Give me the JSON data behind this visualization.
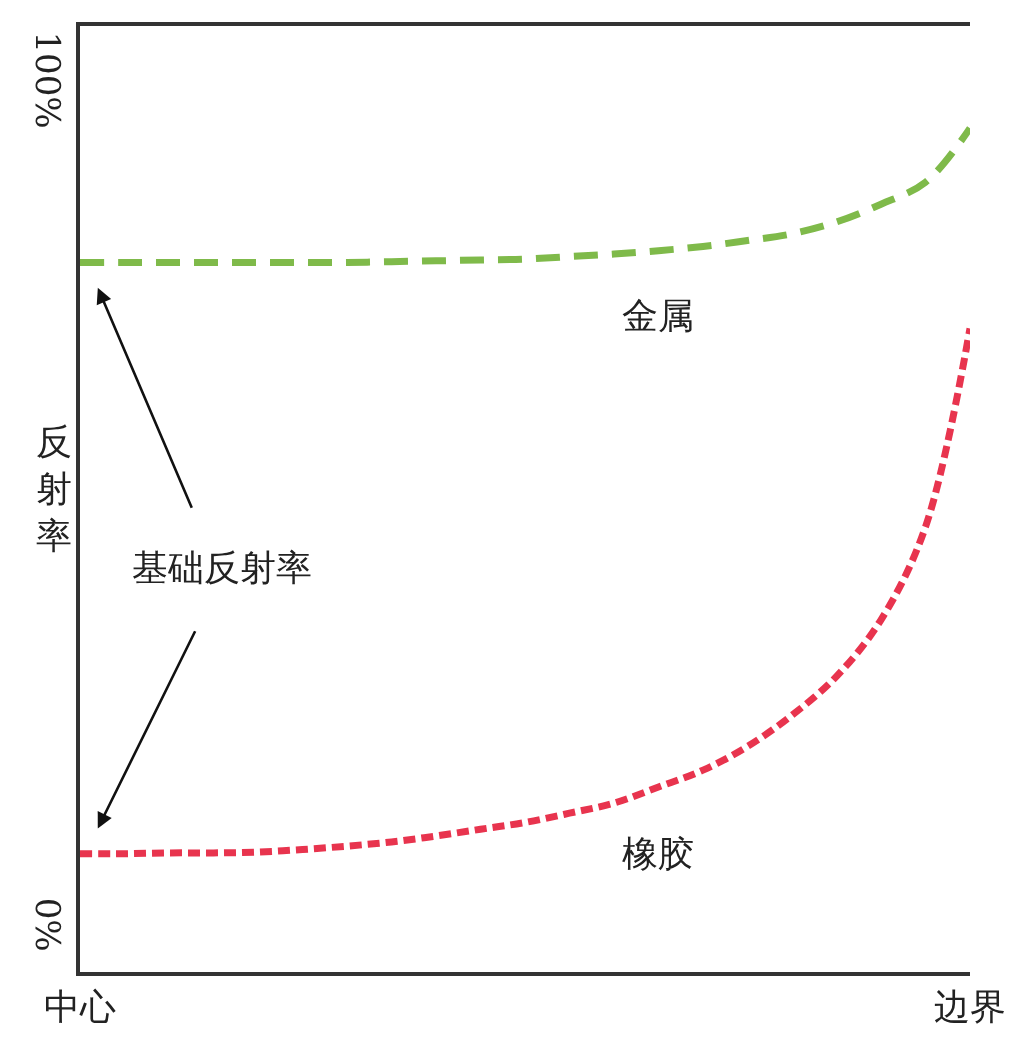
{
  "chart_data": {
    "type": "line",
    "ylabel": "反射率",
    "annotations": [
      "基础反射率"
    ],
    "categories": [
      "中心",
      null,
      null,
      null,
      null,
      null,
      null,
      null,
      null,
      null,
      null,
      null,
      null,
      null,
      null,
      null,
      null,
      null,
      null,
      null,
      "边界"
    ],
    "ylim": [
      -5,
      107
    ],
    "yticks": [
      {
        "value": 0,
        "label": "0%"
      },
      {
        "value": 100,
        "label": "100%"
      }
    ],
    "legend": false,
    "marker": "none",
    "series": [
      {
        "name": "金属",
        "color": "#7fba4a",
        "line_style": "dashed",
        "values": [
          79,
          79,
          79,
          79,
          79,
          79,
          79,
          79.1,
          79.2,
          79.3,
          79.4,
          79.7,
          80,
          80.4,
          80.9,
          81.6,
          82.4,
          83.8,
          85.9,
          88.5,
          94.9
        ]
      },
      {
        "name": "橡胶",
        "color": "#e8344e",
        "line_style": "dashed",
        "values": [
          9,
          9,
          9.1,
          9.1,
          9.2,
          9.5,
          9.9,
          10.4,
          11.1,
          11.9,
          12.7,
          13.8,
          15,
          16.9,
          18.9,
          21.7,
          25.4,
          30,
          36.7,
          47.7,
          71.2
        ]
      }
    ]
  }
}
